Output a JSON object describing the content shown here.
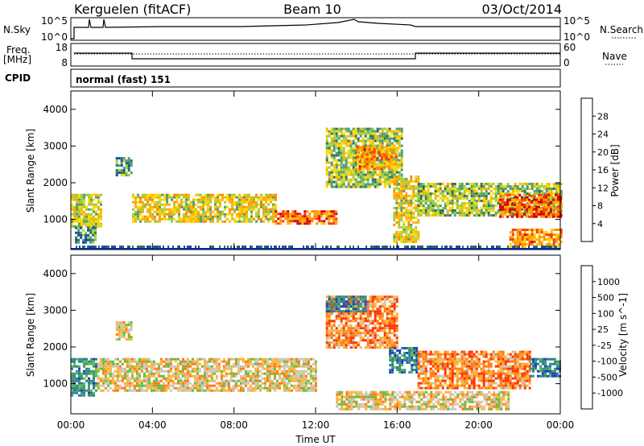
{
  "header": {
    "station": "Kerguelen (fitACF)",
    "beam": "Beam 10",
    "date": "03/Oct/2014"
  },
  "top_panels": {
    "nsky_label": "N.Sky",
    "nsky_ticks": [
      "10^5",
      "10^0"
    ],
    "nsearch_label": "N.Search",
    "nsearch_ticks": [
      "10^5",
      "10^0"
    ],
    "freq_label_line1": "Freq.",
    "freq_label_line2": "[MHz]",
    "freq_ticks": [
      "18",
      "8"
    ],
    "nave_label": "Nave",
    "nave_ticks": [
      "60",
      "0"
    ],
    "cpid_label": "CPID",
    "cpid_text": "normal (fast) 151"
  },
  "chart_data": [
    {
      "type": "heatmap",
      "name": "power-panel",
      "ylabel": "Slant Range [km]",
      "yticks": [
        "4000",
        "3000",
        "2000",
        "1000"
      ],
      "ylim": [
        180,
        4500
      ],
      "x_range_hours": [
        0,
        24
      ],
      "colorbar": {
        "title": "Power [dB]",
        "ticks": [
          "28",
          "24",
          "20",
          "16",
          "12",
          "8",
          "4"
        ],
        "colors": [
          "#d40000",
          "#ff3a00",
          "#ff8c00",
          "#ffb000",
          "#ffd700",
          "#9ccf3c",
          "#4f9e72",
          "#2a7060",
          "#174f93",
          "#0a2fd0",
          "#0000ff"
        ]
      },
      "regions": [
        {
          "t0": 0.0,
          "t1": 1.5,
          "r0": 800,
          "r1": 1700,
          "level": 0.55
        },
        {
          "t0": 0.2,
          "t1": 1.2,
          "r0": 400,
          "r1": 800,
          "level": 0.35
        },
        {
          "t0": 3.0,
          "t1": 10.0,
          "r0": 950,
          "r1": 1700,
          "level": 0.6
        },
        {
          "t0": 10.0,
          "t1": 13.0,
          "r0": 900,
          "r1": 1250,
          "level": 0.8
        },
        {
          "t0": 2.2,
          "t1": 3.0,
          "r0": 2200,
          "r1": 2700,
          "level": 0.4
        },
        {
          "t0": 12.5,
          "t1": 16.2,
          "r0": 1900,
          "r1": 3500,
          "level": 0.5
        },
        {
          "t0": 14.0,
          "t1": 16.0,
          "r0": 2400,
          "r1": 3000,
          "level": 0.75
        },
        {
          "t0": 15.8,
          "t1": 17.0,
          "r0": 400,
          "r1": 2200,
          "level": 0.6
        },
        {
          "t0": 17.0,
          "t1": 24.0,
          "r0": 1100,
          "r1": 2000,
          "level": 0.5
        },
        {
          "t0": 21.0,
          "t1": 24.0,
          "r0": 1100,
          "r1": 1700,
          "level": 0.85
        },
        {
          "t0": 21.5,
          "t1": 24.0,
          "r0": 250,
          "r1": 750,
          "level": 0.75
        }
      ]
    },
    {
      "type": "heatmap",
      "name": "velocity-panel",
      "ylabel": "Slant Range [km]",
      "yticks": [
        "4000",
        "3000",
        "2000",
        "1000"
      ],
      "ylim": [
        180,
        4500
      ],
      "x_range_hours": [
        0,
        24
      ],
      "xticks": [
        "00:00",
        "04:00",
        "08:00",
        "12:00",
        "16:00",
        "20:00",
        "00:00"
      ],
      "xlabel": "Time UT",
      "colorbar": {
        "title": "Velocity [m s^-1]",
        "ticks": [
          "1000",
          "500",
          "100",
          "25",
          "-25",
          "-100",
          "-500",
          "-1000"
        ],
        "colors": [
          "#2040c0",
          "#2f7aa0",
          "#3c9a6e",
          "#5cc040",
          "#c8c8c0",
          "#ffb030",
          "#ff7a10",
          "#ff3000",
          "#e00000"
        ]
      },
      "regions": [
        {
          "t0": 0.0,
          "t1": 1.3,
          "r0": 700,
          "r1": 1700,
          "level": 0.75
        },
        {
          "t0": 1.3,
          "t1": 12.0,
          "r0": 800,
          "r1": 1700,
          "level": 0.45
        },
        {
          "t0": 2.2,
          "t1": 3.0,
          "r0": 2200,
          "r1": 2700,
          "level": 0.45
        },
        {
          "t0": 12.5,
          "t1": 16.0,
          "r0": 2000,
          "r1": 3400,
          "level": 0.3
        },
        {
          "t0": 12.5,
          "t1": 14.5,
          "r0": 3000,
          "r1": 3400,
          "level": 0.8
        },
        {
          "t0": 15.6,
          "t1": 17.0,
          "r0": 1300,
          "r1": 2000,
          "level": 0.8
        },
        {
          "t0": 17.0,
          "t1": 22.5,
          "r0": 900,
          "r1": 1900,
          "level": 0.3
        },
        {
          "t0": 22.5,
          "t1": 24.0,
          "r0": 1200,
          "r1": 1700,
          "level": 0.8
        },
        {
          "t0": 13.0,
          "t1": 21.5,
          "r0": 300,
          "r1": 800,
          "level": 0.45
        }
      ]
    }
  ]
}
